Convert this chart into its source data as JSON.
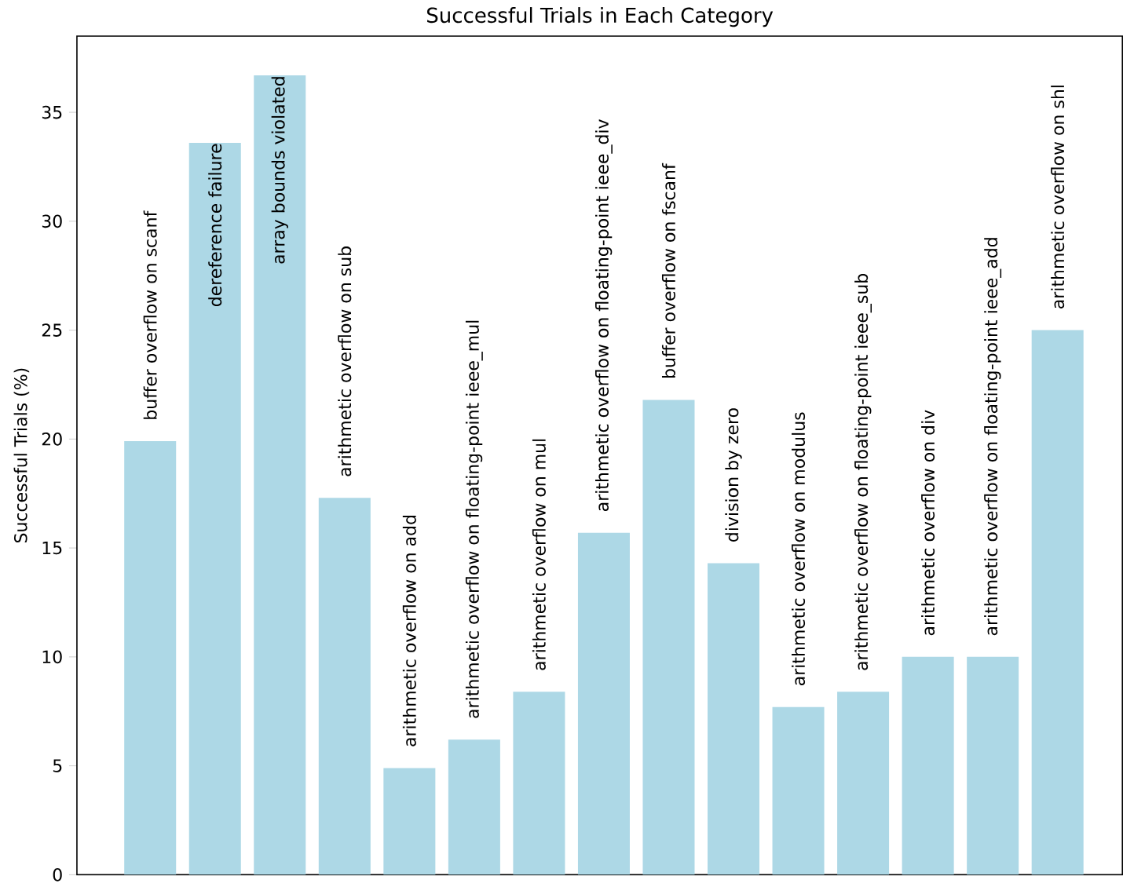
{
  "chart_data": {
    "type": "bar",
    "title": "Successful Trials in Each Category",
    "ylabel": "Successful Trials (%)",
    "categories": [
      "buffer overflow on scanf",
      "dereference failure",
      "array bounds violated",
      "arithmetic overflow on sub",
      "arithmetic overflow on add",
      "arithmetic overflow on floating-point ieee_mul",
      "arithmetic overflow on mul",
      "arithmetic overflow on floating-point ieee_div",
      "buffer overflow on fscanf",
      "division by zero",
      "arithmetic overflow on modulus",
      "arithmetic overflow on floating-point ieee_sub",
      "arithmetic overflow on div",
      "arithmetic overflow on floating-point ieee_add",
      "arithmetic overflow on shl"
    ],
    "values": [
      19.9,
      33.6,
      36.7,
      17.3,
      4.9,
      6.2,
      8.4,
      15.7,
      21.8,
      14.3,
      7.7,
      8.4,
      10.0,
      10.0,
      25.0
    ],
    "color": "#add8e6",
    "ylim": [
      0,
      38.5
    ],
    "yticks": [
      0,
      5,
      10,
      15,
      20,
      25,
      30,
      35
    ]
  }
}
